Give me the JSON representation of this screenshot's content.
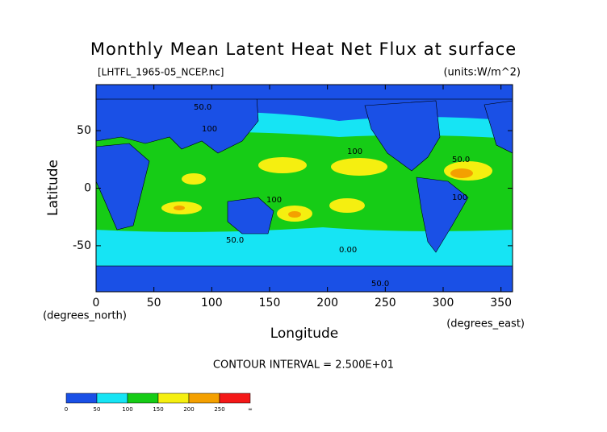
{
  "chart_data": {
    "type": "contour-map",
    "title": "Monthly Mean Latent Heat Net Flux at surface",
    "subtitle": "[LHTFL_1965-05_NCEP.nc]",
    "units": "(units:W/m^2)",
    "xlabel": "Longitude",
    "ylabel": "Latitude",
    "x_unit_label": "(degrees_east)",
    "y_unit_label": "(degrees_north)",
    "xlim": [
      0,
      360
    ],
    "xticks": [
      0,
      50,
      100,
      150,
      200,
      250,
      300,
      350
    ],
    "ylim": [
      -90,
      90
    ],
    "yticks": [
      -50,
      0,
      50
    ],
    "contour_note": "CONTOUR INTERVAL = 2.500E+01",
    "contour_labels": [
      "50.0",
      "100",
      "100",
      "50.0",
      "100",
      "100",
      "50.0",
      "0.00",
      "50.0"
    ],
    "colorbar": {
      "levels": [
        0,
        50,
        100,
        150,
        200,
        250
      ],
      "end_label": "∞",
      "colors": [
        "#1a50e6",
        "#16e4f4",
        "#16cc16",
        "#f5ef10",
        "#f4a000",
        "#f41818"
      ]
    }
  }
}
